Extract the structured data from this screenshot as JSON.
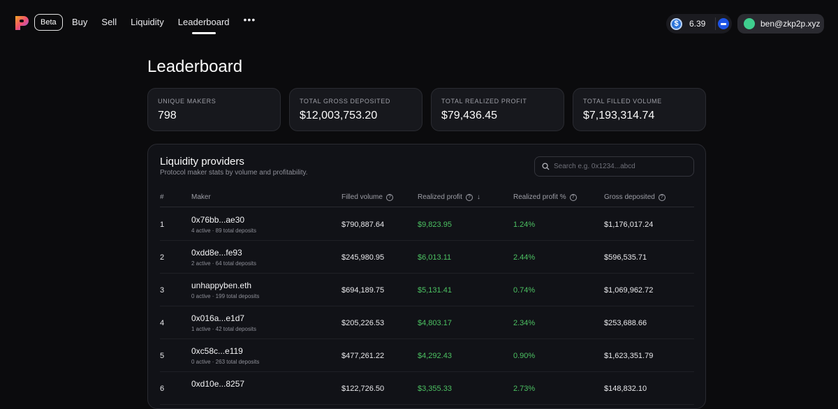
{
  "header": {
    "beta_label": "Beta",
    "nav": [
      {
        "label": "Buy"
      },
      {
        "label": "Sell"
      },
      {
        "label": "Liquidity"
      },
      {
        "label": "Leaderboard",
        "active": true
      }
    ],
    "more_label": "•••",
    "balance": "6.39",
    "account": "ben@zkp2p.xyz",
    "colors": {
      "accent_green": "#4cc162",
      "avatar": "#3fcf8e",
      "usdc": "#2b74d9",
      "base": "#1e54e6"
    }
  },
  "page": {
    "title": "Leaderboard"
  },
  "stats": [
    {
      "label": "UNIQUE MAKERS",
      "value": "798"
    },
    {
      "label": "TOTAL GROSS DEPOSITED",
      "value": "$12,003,753.20"
    },
    {
      "label": "TOTAL REALIZED PROFIT",
      "value": "$79,436.45"
    },
    {
      "label": "TOTAL FILLED VOLUME",
      "value": "$7,193,314.74"
    }
  ],
  "liquidity": {
    "title": "Liquidity providers",
    "subtitle": "Protocol maker stats by volume and profitability.",
    "search_placeholder": "Search e.g. 0x1234...abcd",
    "columns": {
      "rank": "#",
      "maker": "Maker",
      "filled_volume": "Filled volume",
      "realized_profit": "Realized profit",
      "realized_profit_pct": "Realized profit %",
      "gross_deposited": "Gross deposited"
    },
    "rows": [
      {
        "rank": "1",
        "maker": "0x76bb...ae30",
        "meta": "4 active · 89 total deposits",
        "volume": "$790,887.64",
        "profit": "$9,823.95",
        "pct": "1.24%",
        "gross": "$1,176,017.24"
      },
      {
        "rank": "2",
        "maker": "0xdd8e...fe93",
        "meta": "2 active · 64 total deposits",
        "volume": "$245,980.95",
        "profit": "$6,013.11",
        "pct": "2.44%",
        "gross": "$596,535.71"
      },
      {
        "rank": "3",
        "maker": "unhappyben.eth",
        "meta": "0 active · 199 total deposits",
        "volume": "$694,189.75",
        "profit": "$5,131.41",
        "pct": "0.74%",
        "gross": "$1,069,962.72"
      },
      {
        "rank": "4",
        "maker": "0x016a...e1d7",
        "meta": "1 active · 42 total deposits",
        "volume": "$205,226.53",
        "profit": "$4,803.17",
        "pct": "2.34%",
        "gross": "$253,688.66"
      },
      {
        "rank": "5",
        "maker": "0xc58c...e119",
        "meta": "0 active · 263 total deposits",
        "volume": "$477,261.22",
        "profit": "$4,292.43",
        "pct": "0.90%",
        "gross": "$1,623,351.79"
      },
      {
        "rank": "6",
        "maker": "0xd10e...8257",
        "meta": "",
        "volume": "$122,726.50",
        "profit": "$3,355.33",
        "pct": "2.73%",
        "gross": "$148,832.10"
      }
    ]
  }
}
